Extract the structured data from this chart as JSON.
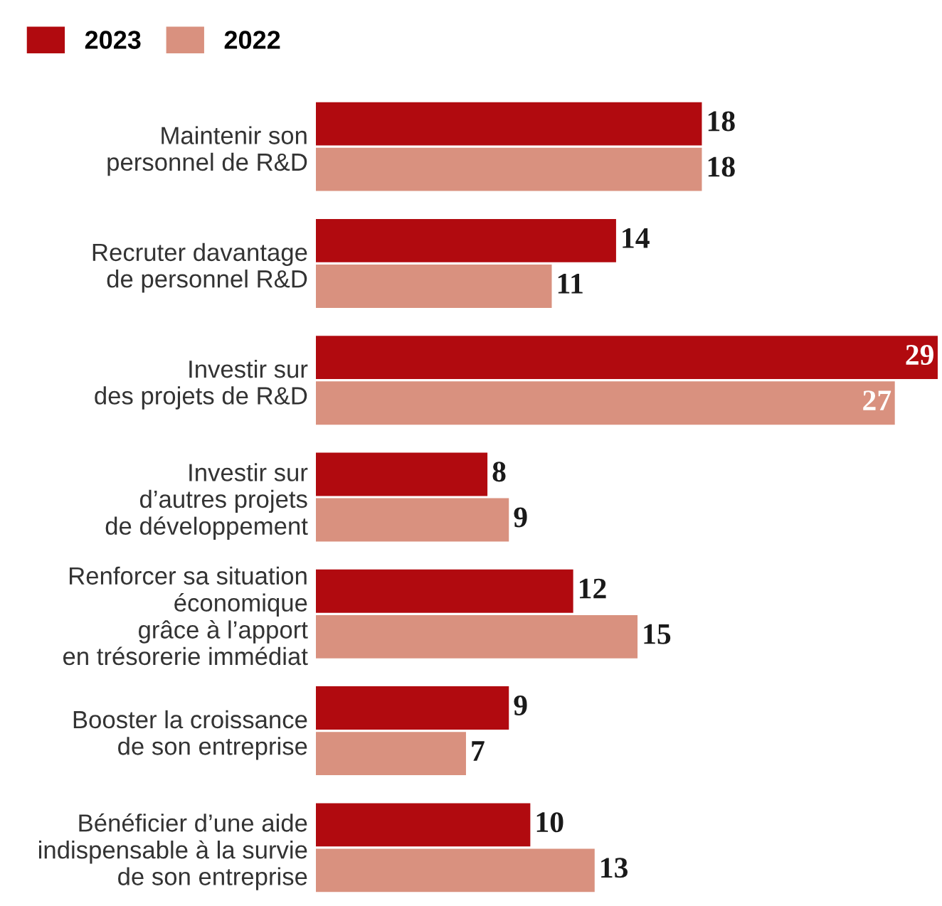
{
  "chart_data": {
    "type": "bar",
    "orientation": "horizontal",
    "data_labels": true,
    "legend": "top left",
    "grid": false,
    "categories": [
      "Maintenir son\npersonnel de R&D",
      "Recruter davantage\nde personnel R&D",
      "Investir sur\ndes projets de R&D",
      "Investir sur\nd’autres projets\nde développement",
      "Renforcer sa situation\néconomique\ngrâce à l’apport\nen trésorerie immédiat",
      "Booster la croissance\nde son entreprise",
      "Bénéficier d’une aide\nindispensable à la survie\nde son entreprise"
    ],
    "series": [
      {
        "name": "2023",
        "color": "#b10a0f",
        "values": [
          18,
          14,
          29,
          8,
          12,
          9,
          10
        ]
      },
      {
        "name": "2022",
        "color": "#d9917f",
        "values": [
          18,
          11,
          27,
          9,
          15,
          7,
          13
        ]
      }
    ]
  }
}
